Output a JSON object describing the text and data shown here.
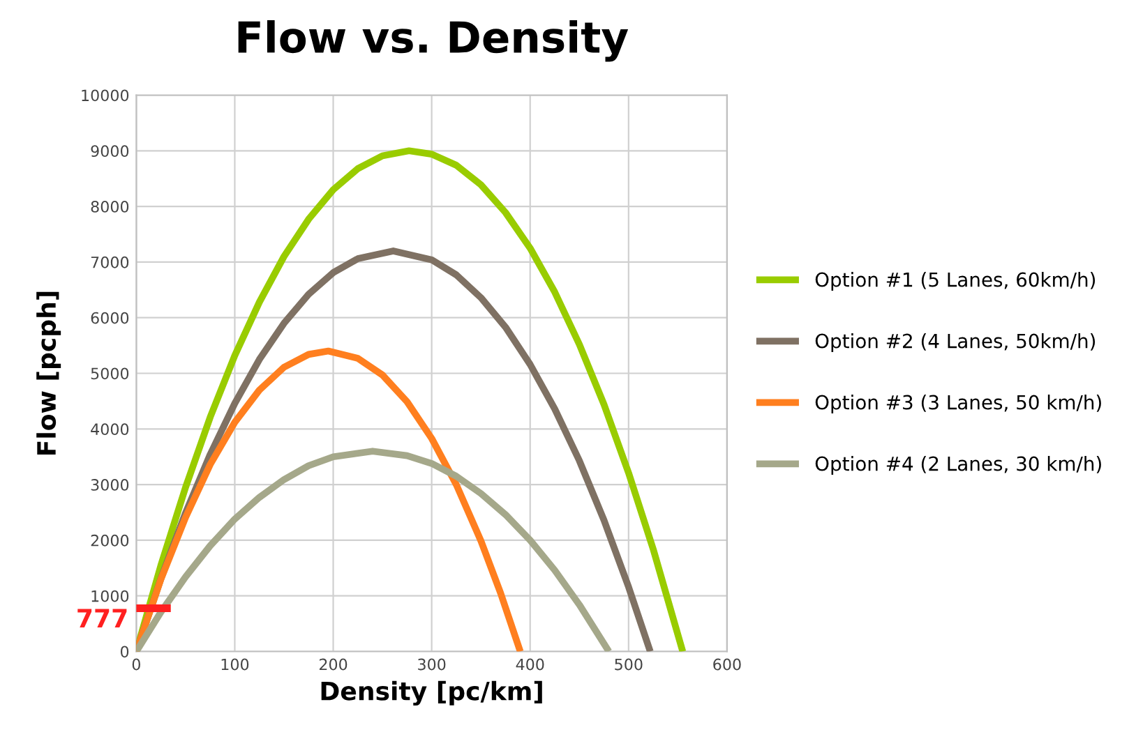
{
  "chart_data": {
    "type": "line",
    "title": "Flow vs. Density",
    "xlabel": "Density [pc/km]",
    "ylabel": "Flow [pcph]",
    "xlim": [
      0,
      600
    ],
    "xticks": [
      0,
      100,
      200,
      300,
      400,
      500,
      600
    ],
    "ylim": [
      0,
      10000
    ],
    "yticks": [
      0,
      1000,
      2000,
      3000,
      4000,
      5000,
      6000,
      7000,
      8000,
      9000,
      10000
    ],
    "grid": true,
    "legend": "right",
    "marker": "none",
    "line_style": "solid",
    "series": [
      {
        "name": "Option #1 (5 Lanes, 60km/h)",
        "color": "#99cc00",
        "x": [
          0,
          25,
          50,
          75,
          100,
          125,
          150,
          175,
          200,
          225,
          250,
          277,
          300,
          325,
          350,
          375,
          400,
          425,
          450,
          475,
          500,
          525,
          555
        ],
        "values": [
          0,
          1550,
          2950,
          4210,
          5320,
          6280,
          7100,
          7770,
          8300,
          8680,
          8910,
          9000,
          8940,
          8740,
          8390,
          7890,
          7250,
          6460,
          5520,
          4440,
          3210,
          1840,
          0
        ]
      },
      {
        "name": "Option #2 (4 Lanes, 50km/h)",
        "color": "#7f7163",
        "x": [
          0,
          25,
          50,
          75,
          100,
          125,
          150,
          175,
          200,
          225,
          261,
          300,
          325,
          350,
          375,
          400,
          425,
          450,
          475,
          500,
          522
        ],
        "values": [
          0,
          1310,
          2490,
          3540,
          4460,
          5250,
          5900,
          6420,
          6810,
          7060,
          7200,
          7040,
          6770,
          6360,
          5830,
          5160,
          4360,
          3430,
          2360,
          1160,
          0
        ]
      },
      {
        "name": "Option #3 (3 Lanes, 50 km/h)",
        "color": "#ff7f1f",
        "x": [
          0,
          25,
          50,
          75,
          100,
          125,
          150,
          175,
          195,
          225,
          250,
          275,
          300,
          325,
          350,
          370,
          390
        ],
        "values": [
          0,
          1300,
          2410,
          3360,
          4120,
          4700,
          5110,
          5340,
          5400,
          5270,
          4970,
          4490,
          3830,
          3000,
          1990,
          1050,
          0
        ]
      },
      {
        "name": "Option #4 (2 Lanes, 30 km/h)",
        "color": "#a5a88a",
        "x": [
          0,
          25,
          50,
          75,
          100,
          125,
          150,
          175,
          200,
          240,
          275,
          300,
          325,
          350,
          375,
          400,
          425,
          450,
          480
        ],
        "values": [
          0,
          710,
          1340,
          1900,
          2380,
          2770,
          3090,
          3340,
          3500,
          3600,
          3520,
          3380,
          3150,
          2840,
          2460,
          2000,
          1460,
          840,
          0
        ]
      },
      {
        "color": "#ff2020",
        "x": [
          0,
          35
        ],
        "values": [
          777,
          777
        ]
      }
    ],
    "annotations": [
      {
        "text": "777",
        "x": 0,
        "y": 777
      }
    ]
  }
}
